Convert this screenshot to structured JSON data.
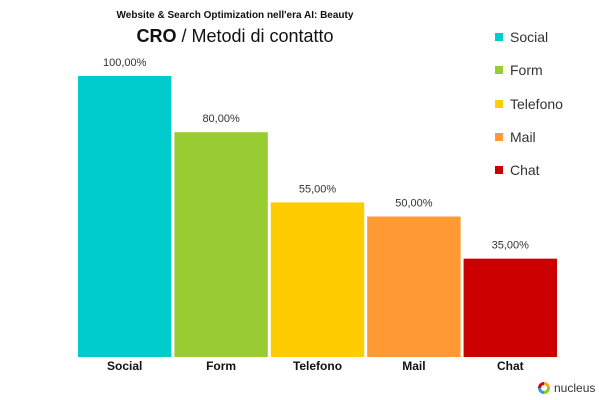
{
  "header": {
    "supertitle": "Website & Search Optimization nell'era AI: Beauty",
    "title_strong": "CRO",
    "title_rest": " / Metodi di contatto"
  },
  "chart_data": {
    "type": "bar",
    "categories": [
      "Social",
      "Form",
      "Telefono",
      "Mail",
      "Chat"
    ],
    "values": [
      100,
      80,
      55,
      50,
      35
    ],
    "value_labels": [
      "100,00%",
      "80,00%",
      "55,00%",
      "50,00%",
      "35,00%"
    ],
    "colors": [
      "#00CCCC",
      "#99CC33",
      "#FFCC00",
      "#FF9933",
      "#CC0000"
    ],
    "ylim": [
      0,
      100
    ],
    "grid": false,
    "legend": "right",
    "xlabel": "",
    "ylabel": ""
  },
  "legend": {
    "items": [
      {
        "label": "Social",
        "color": "#00CCCC"
      },
      {
        "label": "Form",
        "color": "#99CC33"
      },
      {
        "label": "Telefono",
        "color": "#FFCC00"
      },
      {
        "label": "Mail",
        "color": "#FF9933"
      },
      {
        "label": "Chat",
        "color": "#CC0000"
      }
    ]
  },
  "brand": {
    "label": "nucleus",
    "icon": "nucleus-logo-icon",
    "colors": [
      "#F5A623",
      "#7ED321",
      "#4A90E2",
      "#D0021B"
    ]
  }
}
